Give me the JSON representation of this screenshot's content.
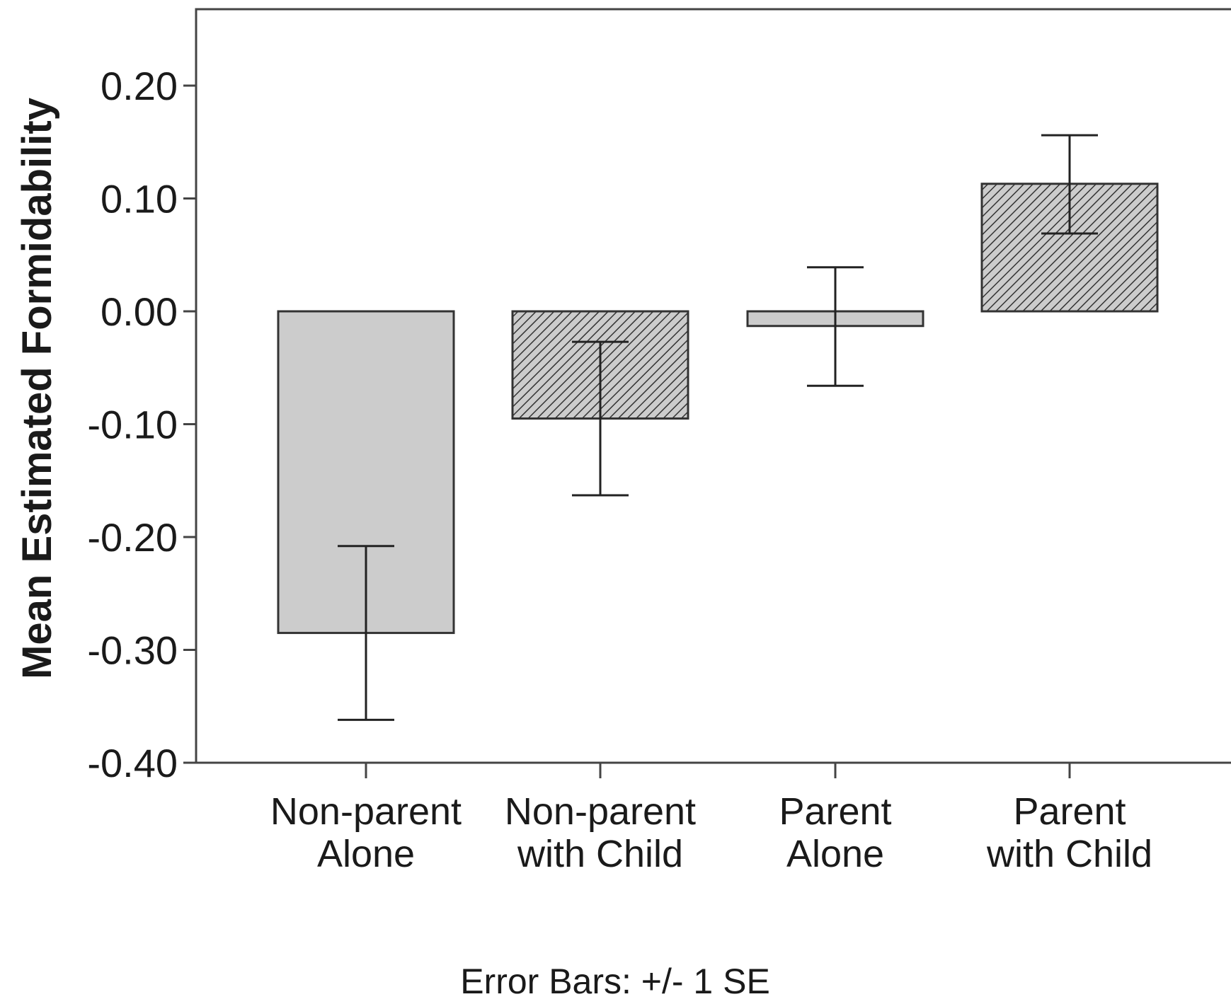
{
  "chart_data": {
    "type": "bar",
    "title": "",
    "xlabel": "",
    "ylabel": "Mean Estimated Formidability",
    "ylim": [
      -0.4,
      0.27
    ],
    "yticks": [
      "0.20",
      "0.10",
      "0.00",
      "-0.10",
      "-0.20",
      "-0.30",
      "-0.40"
    ],
    "ytick_values": [
      0.2,
      0.1,
      0.0,
      -0.1,
      -0.2,
      -0.3,
      -0.4
    ],
    "grid": false,
    "categories": [
      {
        "line1": "Non-parent",
        "line2": "Alone"
      },
      {
        "line1": "Non-parent",
        "line2": "with Child"
      },
      {
        "line1": "Parent",
        "line2": "Alone"
      },
      {
        "line1": "Parent",
        "line2": "with Child"
      }
    ],
    "values": [
      -0.285,
      -0.095,
      -0.013,
      0.113
    ],
    "error_low": [
      -0.362,
      -0.163,
      -0.066,
      0.069
    ],
    "error_high": [
      -0.208,
      -0.027,
      0.039,
      0.156
    ],
    "fills": [
      "solid-gray",
      "hatched",
      "solid-gray",
      "hatched"
    ],
    "colors": {
      "bar_fill": "#cccccc",
      "hatch_bg": "#cccccc",
      "hatch_line": "#333333",
      "stroke": "#333333"
    },
    "footnote": "Error Bars: +/- 1 SE"
  }
}
